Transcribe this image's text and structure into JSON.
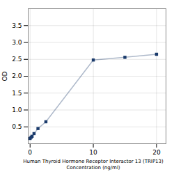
{
  "chart_data": {
    "type": "line",
    "x": [
      0,
      0.156,
      0.3125,
      0.625,
      1.25,
      2.5,
      10,
      15,
      20
    ],
    "values": [
      0.155,
      0.19,
      0.22,
      0.3,
      0.45,
      0.65,
      2.48,
      2.56,
      2.65
    ],
    "color": "#1a3a6b",
    "marker": "square",
    "xlabel": "Human Thyroid Hormone Receptor Interactor 13 (TRIP13)\nConcentration (ng/ml)",
    "ylabel": "OD",
    "xlim": [
      -0.3,
      21.5
    ],
    "ylim": [
      0,
      4.0
    ],
    "xticks": [
      0,
      10,
      20
    ],
    "yticks": [
      0.5,
      {
        "value": 1.0,
        "label": "1.0"
      },
      1.5,
      {
        "value": 2.0,
        "label": "2.0"
      },
      2.5,
      {
        "value": 3.0,
        "label": "3.0"
      },
      3.5
    ],
    "grid": true
  }
}
